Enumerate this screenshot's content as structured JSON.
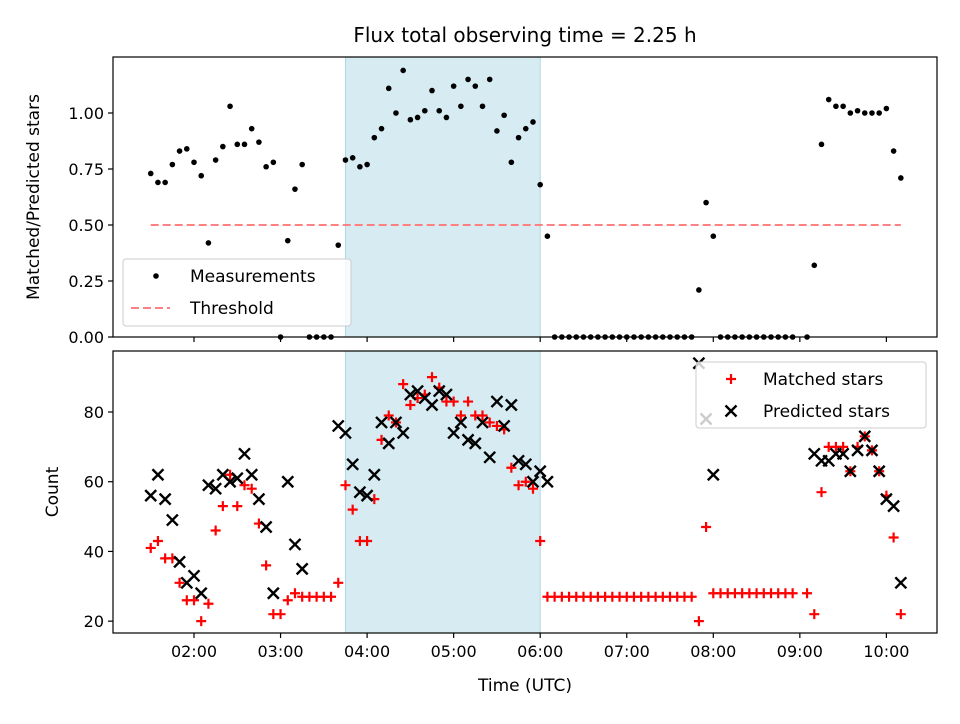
{
  "chart_data": [
    {
      "type": "scatter",
      "title": "Flux total observing time = 2.25 h",
      "xlabel": "",
      "ylabel": "Matched/Predicted stars",
      "ylim": [
        0,
        1.25
      ],
      "yticks": [
        0,
        0.25,
        0.5,
        0.75,
        1.0
      ],
      "ytick_labels": [
        "0.00",
        "0.25",
        "0.50",
        "0.75",
        "1.00"
      ],
      "xlim_hours": [
        1.06,
        10.6
      ],
      "x_start_hours": 1.5,
      "x_step_minutes": 5,
      "shaded_interval_hours": [
        3.75,
        6.0
      ],
      "threshold": {
        "value": 0.5,
        "x_range_hours": [
          1.5,
          10.167
        ]
      },
      "legend": {
        "position": "lower-left",
        "entries": [
          "Measurements",
          "Threshold"
        ]
      },
      "series": [
        {
          "name": "Measurements",
          "values": [
            0.73,
            0.69,
            0.69,
            0.77,
            0.83,
            0.84,
            0.78,
            0.72,
            0.42,
            0.79,
            0.85,
            1.03,
            0.86,
            0.86,
            0.93,
            0.87,
            0.76,
            0.78,
            0,
            0.43,
            0.66,
            0.77,
            0,
            0,
            0,
            0,
            0.41,
            0.79,
            0.8,
            0.76,
            0.77,
            0.89,
            0.93,
            1.11,
            1.0,
            1.19,
            0.97,
            0.98,
            1.01,
            1.1,
            1.01,
            0.98,
            1.12,
            1.03,
            1.15,
            1.12,
            1.03,
            1.15,
            0.92,
            0.99,
            0.78,
            0.89,
            0.93,
            0.96,
            0.68,
            0.45,
            0,
            0,
            0,
            0,
            0,
            0,
            0,
            0,
            0,
            0,
            0,
            0,
            0,
            0,
            0,
            0,
            0,
            0,
            0,
            0,
            0.21,
            0.6,
            0.45,
            0,
            0,
            0,
            0,
            0,
            0,
            0,
            0,
            0,
            0,
            0,
            null,
            0,
            0.32,
            0.86,
            1.06,
            1.03,
            1.03,
            1.0,
            1.01,
            1.0,
            1.0,
            1.0,
            1.02,
            0.83,
            0.71
          ]
        }
      ],
      "colors": {
        "measurements": "#000000",
        "threshold": "#ff8080",
        "shade": "#add8e6"
      }
    },
    {
      "type": "scatter",
      "xlabel": "Time (UTC)",
      "ylabel": "Count",
      "ylim": [
        16.6,
        97.5
      ],
      "yticks": [
        20,
        40,
        60,
        80
      ],
      "ytick_labels": [
        "20",
        "40",
        "60",
        "80"
      ],
      "xticks_hours": [
        2,
        3,
        4,
        5,
        6,
        7,
        8,
        9,
        10
      ],
      "xtick_labels": [
        "02:00",
        "03:00",
        "04:00",
        "05:00",
        "06:00",
        "07:00",
        "08:00",
        "09:00",
        "10:00"
      ],
      "shaded_interval_hours": [
        3.75,
        6.0
      ],
      "legend": {
        "position": "top-right",
        "entries": [
          "Matched stars",
          "Predicted stars"
        ]
      },
      "series": [
        {
          "name": "Matched stars",
          "values": [
            41,
            43,
            38,
            38,
            31,
            26,
            26,
            20,
            25,
            46,
            53,
            62,
            53,
            59,
            58,
            48,
            36,
            22,
            22,
            26,
            28,
            27,
            27,
            27,
            27,
            27,
            31,
            59,
            52,
            43,
            43,
            55,
            72,
            79,
            77,
            88,
            82,
            84,
            85,
            90,
            87,
            83,
            83,
            79,
            83,
            79,
            79,
            77,
            76,
            75,
            64,
            59,
            60,
            58,
            43,
            27,
            27,
            27,
            27,
            27,
            27,
            27,
            27,
            27,
            27,
            27,
            27,
            27,
            27,
            27,
            27,
            27,
            27,
            27,
            27,
            27,
            20,
            47,
            28,
            28,
            28,
            28,
            28,
            28,
            28,
            28,
            28,
            28,
            28,
            28,
            null,
            28,
            22,
            57,
            70,
            70,
            70,
            63,
            70,
            73,
            69,
            63,
            56,
            44,
            22
          ]
        },
        {
          "name": "Predicted stars",
          "values": [
            56,
            62,
            55,
            49,
            37,
            31,
            33,
            28,
            59,
            58,
            62,
            60,
            61,
            68,
            62,
            55,
            47,
            28,
            null,
            60,
            42,
            35,
            null,
            null,
            null,
            null,
            76,
            74,
            65,
            57,
            56,
            62,
            77,
            71,
            77,
            74,
            85,
            86,
            84,
            82,
            86,
            85,
            74,
            77,
            72,
            71,
            77,
            67,
            83,
            76,
            82,
            66,
            65,
            60,
            63,
            60,
            null,
            null,
            null,
            null,
            null,
            null,
            null,
            null,
            null,
            null,
            null,
            null,
            null,
            null,
            null,
            null,
            null,
            null,
            null,
            null,
            94,
            78,
            62,
            null,
            null,
            null,
            null,
            null,
            null,
            null,
            null,
            null,
            null,
            null,
            null,
            null,
            68,
            66,
            66,
            68,
            68,
            63,
            69,
            73,
            69,
            63,
            55,
            53,
            31
          ]
        }
      ],
      "colors": {
        "matched": "#ff0000",
        "predicted": "#000000"
      }
    }
  ]
}
